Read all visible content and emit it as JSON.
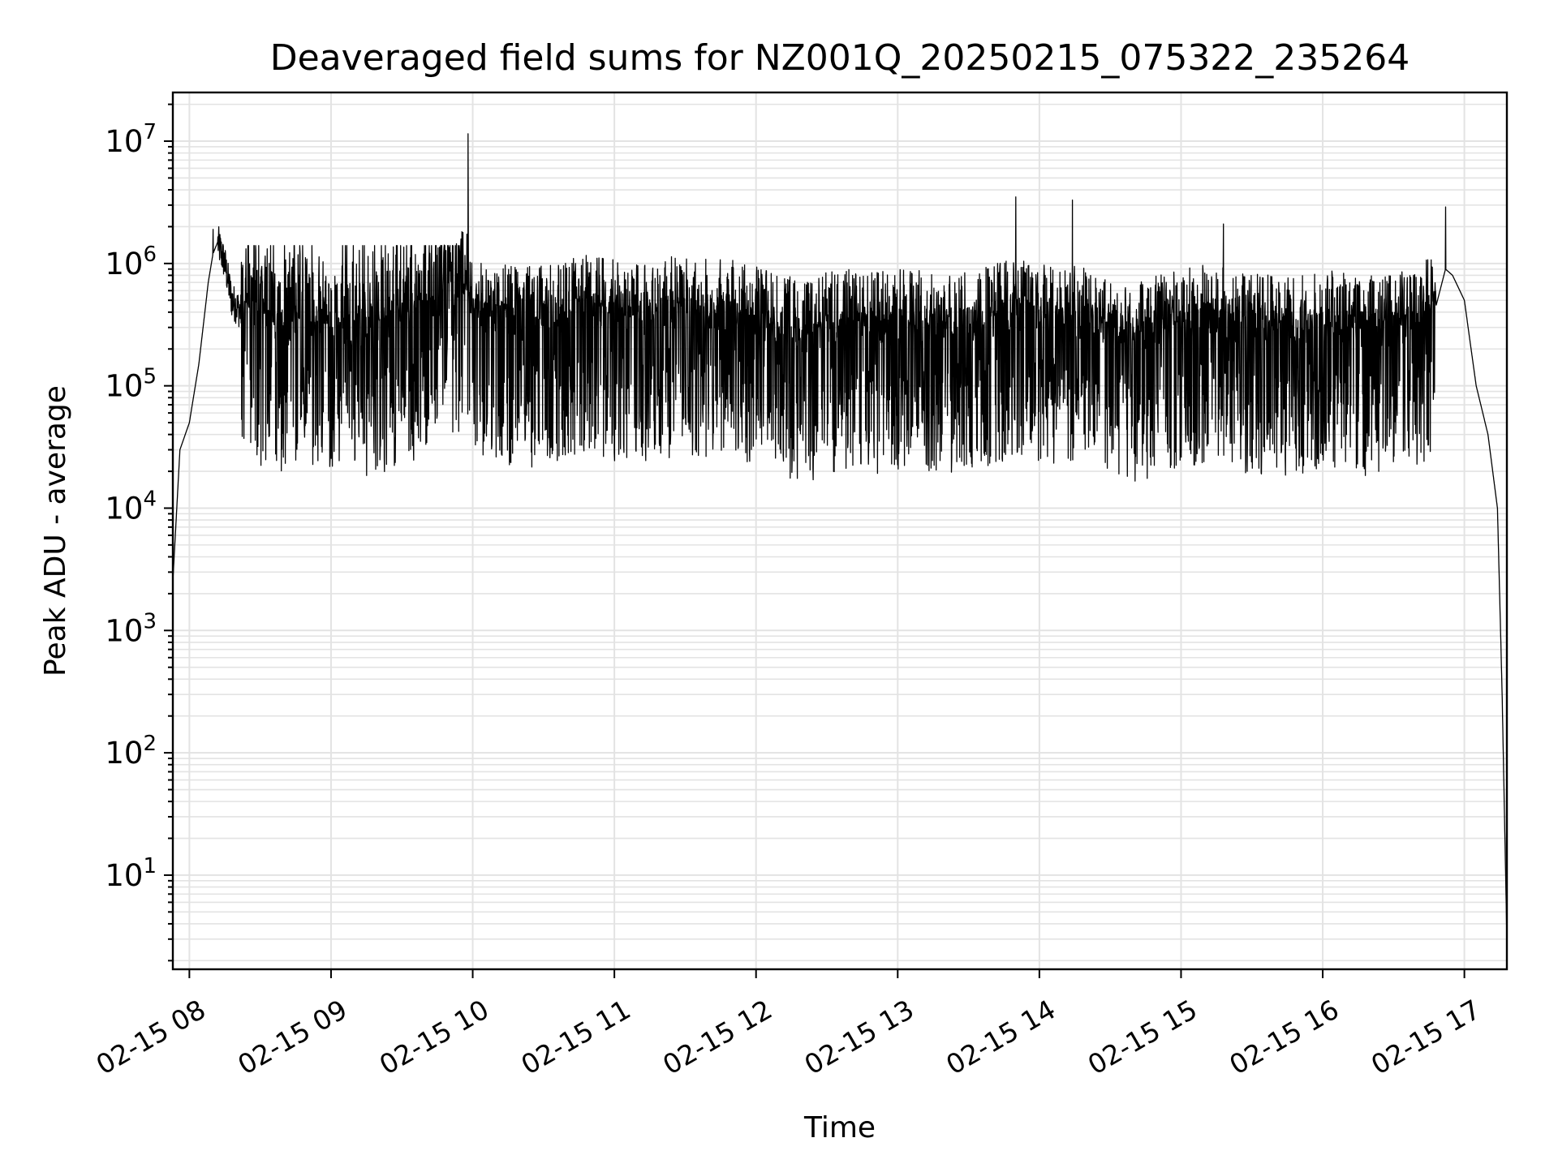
{
  "chart_data": {
    "type": "line",
    "title": "Deaveraged field sums for NZ001Q_20250215_075322_235264",
    "xlabel": "Time",
    "ylabel": "Peak ADU - average",
    "yscale": "log",
    "ylim": [
      1.7,
      25000000
    ],
    "xlim": [
      "02-15 07:53",
      "02-15 17:18"
    ],
    "grid": true,
    "line_color": "#000000",
    "grid_color": "#e3e3e3",
    "y_ticks": [
      {
        "base": "10",
        "exp": "1",
        "value": 10
      },
      {
        "base": "10",
        "exp": "2",
        "value": 100
      },
      {
        "base": "10",
        "exp": "3",
        "value": 1000
      },
      {
        "base": "10",
        "exp": "4",
        "value": 10000
      },
      {
        "base": "10",
        "exp": "5",
        "value": 100000
      },
      {
        "base": "10",
        "exp": "6",
        "value": 1000000
      },
      {
        "base": "10",
        "exp": "7",
        "value": 10000000
      }
    ],
    "x_ticks": [
      "02-15 08",
      "02-15 09",
      "02-15 10",
      "02-15 11",
      "02-15 12",
      "02-15 13",
      "02-15 14",
      "02-15 15",
      "02-15 16",
      "02-15 17"
    ],
    "series": [
      {
        "x": [
          "07:53",
          "07:56",
          "08:00",
          "08:04",
          "08:08",
          "08:10",
          "08:12",
          "08:15",
          "08:18",
          "08:22",
          "08:30",
          "08:40",
          "08:50",
          "09:00",
          "09:10",
          "09:20",
          "09:30",
          "09:40",
          "09:50",
          "09:58",
          "10:00",
          "10:05",
          "10:10",
          "10:20",
          "10:30",
          "10:40",
          "10:50",
          "11:00",
          "11:10",
          "11:20",
          "11:30",
          "11:40",
          "11:50",
          "12:00",
          "12:10",
          "12:20",
          "12:30",
          "12:40",
          "12:50",
          "13:00",
          "13:10",
          "13:20",
          "13:30",
          "13:40",
          "13:50",
          "14:00",
          "14:10",
          "14:20",
          "14:30",
          "14:40",
          "14:50",
          "15:00",
          "15:10",
          "15:20",
          "15:30",
          "15:40",
          "15:50",
          "16:00",
          "16:10",
          "16:20",
          "16:30",
          "16:40",
          "16:48",
          "16:52",
          "16:55",
          "17:00",
          "17:05",
          "17:10",
          "17:14",
          "17:16",
          "17:18"
        ],
        "y": [
          2500,
          30000,
          50000,
          150000,
          700000,
          1200000,
          1500000,
          1000000,
          500000,
          400000,
          350000,
          300000,
          320000,
          300000,
          280000,
          300000,
          350000,
          400000,
          600000,
          700000,
          400000,
          350000,
          380000,
          330000,
          350000,
          400000,
          420000,
          380000,
          350000,
          400000,
          420000,
          380000,
          400000,
          350000,
          300000,
          250000,
          300000,
          320000,
          300000,
          330000,
          310000,
          300000,
          320000,
          350000,
          400000,
          380000,
          350000,
          330000,
          300000,
          250000,
          300000,
          320000,
          350000,
          330000,
          300000,
          280000,
          300000,
          320000,
          300000,
          280000,
          300000,
          330000,
          450000,
          900000,
          800000,
          500000,
          100000,
          40000,
          10000,
          300,
          3
        ],
        "envelope_max": {
          "x": [
            "08:10",
            "09:58",
            "13:50",
            "14:14",
            "15:18",
            "16:52"
          ],
          "y": [
            1900000,
            11500000,
            3500000,
            3300000,
            2100000,
            2900000
          ]
        },
        "envelope_min_typical": 60000
      }
    ]
  }
}
